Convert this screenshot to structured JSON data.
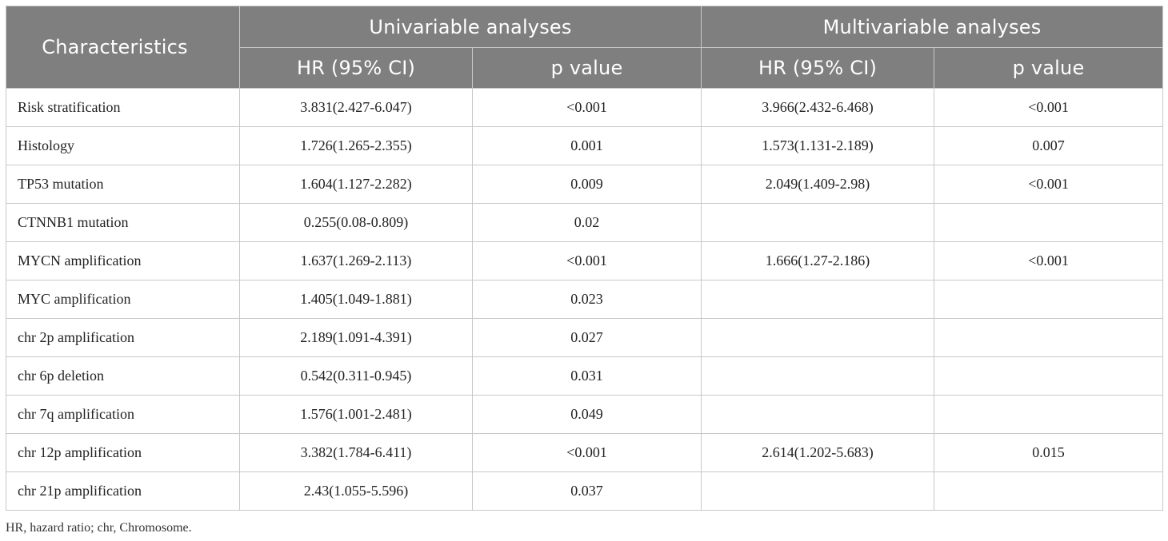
{
  "table": {
    "header": {
      "characteristics": "Characteristics",
      "univariable": "Univariable analyses",
      "multivariable": "Multivariable analyses",
      "uni_hr": "HR (95% CI)",
      "uni_p": "p value",
      "multi_hr": "HR (95% CI)",
      "multi_p": "p value"
    },
    "rows": [
      {
        "label": "Risk stratification",
        "uni_hr": "3.831(2.427-6.047)",
        "uni_p": "<0.001",
        "multi_hr": "3.966(2.432-6.468)",
        "multi_p": "<0.001"
      },
      {
        "label": "Histology",
        "uni_hr": "1.726(1.265-2.355)",
        "uni_p": "0.001",
        "multi_hr": "1.573(1.131-2.189)",
        "multi_p": "0.007"
      },
      {
        "label": "TP53 mutation",
        "uni_hr": "1.604(1.127-2.282)",
        "uni_p": "0.009",
        "multi_hr": "2.049(1.409-2.98)",
        "multi_p": "<0.001"
      },
      {
        "label": "CTNNB1 mutation",
        "uni_hr": "0.255(0.08-0.809)",
        "uni_p": "0.02",
        "multi_hr": "",
        "multi_p": ""
      },
      {
        "label": "MYCN amplification",
        "uni_hr": "1.637(1.269-2.113)",
        "uni_p": "<0.001",
        "multi_hr": "1.666(1.27-2.186)",
        "multi_p": "<0.001"
      },
      {
        "label": "MYC amplification",
        "uni_hr": "1.405(1.049-1.881)",
        "uni_p": "0.023",
        "multi_hr": "",
        "multi_p": ""
      },
      {
        "label": "chr 2p amplification",
        "uni_hr": "2.189(1.091-4.391)",
        "uni_p": "0.027",
        "multi_hr": "",
        "multi_p": ""
      },
      {
        "label": "chr 6p deletion",
        "uni_hr": "0.542(0.311-0.945)",
        "uni_p": "0.031",
        "multi_hr": "",
        "multi_p": ""
      },
      {
        "label": "chr 7q amplification",
        "uni_hr": "1.576(1.001-2.481)",
        "uni_p": "0.049",
        "multi_hr": "",
        "multi_p": ""
      },
      {
        "label": "chr 12p amplification",
        "uni_hr": "3.382(1.784-6.411)",
        "uni_p": "<0.001",
        "multi_hr": "2.614(1.202-5.683)",
        "multi_p": "0.015"
      },
      {
        "label": "chr 21p amplification",
        "uni_hr": "2.43(1.055-5.596)",
        "uni_p": "0.037",
        "multi_hr": "",
        "multi_p": ""
      }
    ]
  },
  "footnote": "HR, hazard ratio; chr, Chromosome."
}
